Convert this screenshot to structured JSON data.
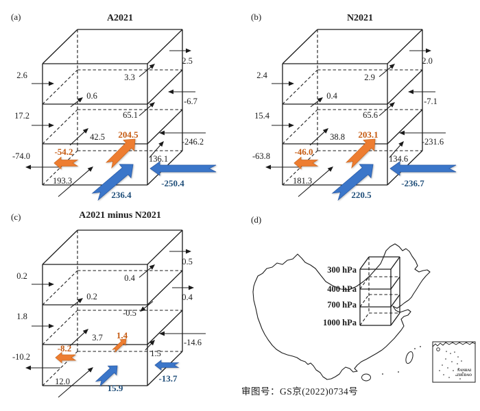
{
  "colors": {
    "orange_arrow": "#ED7D31",
    "orange_arrow_edge": "#D2691E",
    "orange_text": "#C55A11",
    "blue_arrow": "#3B76C9",
    "blue_arrow_edge": "#2A5CA8",
    "blue_text": "#1F4E79",
    "line": "#1a1a1a"
  },
  "panels": [
    {
      "id": "a",
      "letter": "(a)",
      "title": "A2021",
      "arrows": {
        "right_upper_dir": "in",
        "back_mid_dir": "up",
        "colored_size": "large"
      },
      "values": {
        "left_top": "2.6",
        "left_mid": "17.2",
        "left_bottom": "-74.0",
        "top_out": "2.5",
        "right_upper": "-6.7",
        "right_lower": "-246.2",
        "back_top": "3.3",
        "back_upper_small": "0.6",
        "back_mid": "65.1",
        "front_mid": "42.5",
        "right_bottom": "136.1",
        "bottom_back": "193.3",
        "orange_up": "204.5",
        "orange_out": "-54.2",
        "blue_up": "236.4",
        "blue_in": "-250.4"
      }
    },
    {
      "id": "b",
      "letter": "(b)",
      "title": "N2021",
      "arrows": {
        "right_upper_dir": "in",
        "back_mid_dir": "up",
        "colored_size": "large"
      },
      "values": {
        "left_top": "2.4",
        "left_mid": "15.4",
        "left_bottom": "-63.8",
        "top_out": "2.0",
        "right_upper": "-7.1",
        "right_lower": "-231.6",
        "back_top": "2.9",
        "back_upper_small": "0.4",
        "back_mid": "65.6",
        "front_mid": "38.8",
        "right_bottom": "134.6",
        "bottom_back": "181.3",
        "orange_up": "203.1",
        "orange_out": "-46.0",
        "blue_up": "220.5",
        "blue_in": "-236.7"
      }
    },
    {
      "id": "c",
      "letter": "(c)",
      "title": "A2021 minus N2021",
      "arrows": {
        "right_upper_dir": "out",
        "back_mid_dir": "down",
        "colored_size": "small"
      },
      "values": {
        "left_top": "0.2",
        "left_mid": "1.8",
        "left_bottom": "-10.2",
        "top_out": "0.5",
        "right_upper": "0.4",
        "right_lower": "-14.6",
        "back_top": "0.4",
        "back_upper_small": "0.2",
        "back_mid": "-0.5",
        "front_mid": "3.7",
        "right_bottom": "1.5",
        "bottom_back": "12.0",
        "orange_up": "1.4",
        "orange_out": "-8.2",
        "blue_up": "15.9",
        "blue_in": "-13.7"
      }
    }
  ],
  "map_panel": {
    "letter": "(d)",
    "pressure_levels": [
      "300 hPa",
      "400 hPa",
      "700 hPa",
      "1000 hPa"
    ],
    "inset_label": [
      "NANHAI",
      "ZHUDAO"
    ],
    "approval_text": "审图号：GS京(2022)0734号"
  }
}
